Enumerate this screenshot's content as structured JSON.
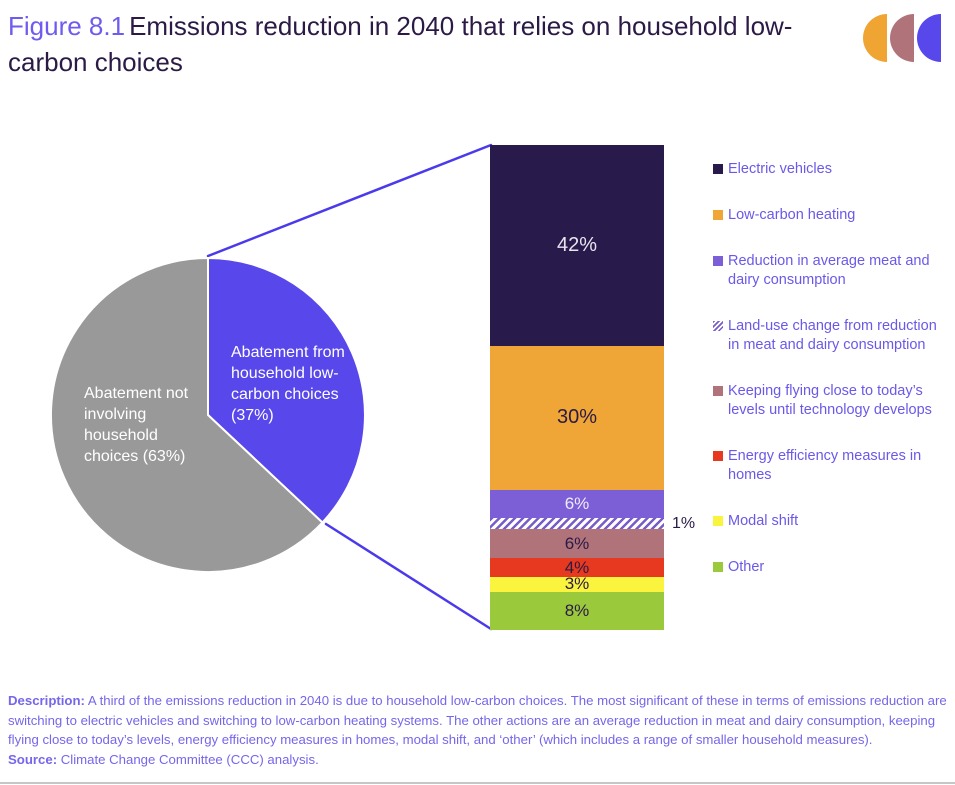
{
  "figure": {
    "label": "Figure 8.1",
    "title": "Emissions reduction in 2040 that relies on household low-carbon choices"
  },
  "logo": {
    "name": "CCC logo",
    "colors": [
      "#F0A432",
      "#B0737A",
      "#5847EB"
    ]
  },
  "chart_data": [
    {
      "type": "pie",
      "direction": "clockwise",
      "start_angle": "12 o'clock",
      "label_color": "#FFFFFF",
      "slices": [
        {
          "label": "Abatement from household low-carbon choices (37%)",
          "value": 37,
          "color": "#5847EB"
        },
        {
          "label": "Abatement not involving household choices (63%)",
          "value": 63,
          "color": "#9A999A"
        }
      ]
    },
    {
      "type": "stacked-bar",
      "unit": "%",
      "total": 100,
      "legend_position": "right",
      "series": [
        {
          "name": "Electric vehicles",
          "value": 42,
          "data_label": "42%",
          "color": "#281A4A",
          "label_color": "#E9E5F0"
        },
        {
          "name": "Low-carbon heating",
          "value": 30,
          "data_label": "30%",
          "color": "#F0A636",
          "label_color": "#2B1A46"
        },
        {
          "name": "Reduction in average meat and dairy consumption",
          "value": 6,
          "data_label": "6%",
          "color": "#7C5ED7",
          "label_color": "#EFEBF7"
        },
        {
          "name": "Land-use change from reduction in meat and dairy consumption",
          "value": 1,
          "data_label": "1%",
          "color": "hatched-white-purple",
          "hatch": true,
          "hatch_stripe_color": "#7A5CC8",
          "label_color": "#2B1A46",
          "label_outside": true
        },
        {
          "name": "Keeping flying close to today’s levels until technology develops",
          "value": 6,
          "data_label": "6%",
          "color": "#B0737A",
          "label_color": "#2B1A46"
        },
        {
          "name": "Energy efficiency measures in homes",
          "value": 4,
          "data_label": "4%",
          "color": "#E6391F",
          "label_color": "#2B1A46"
        },
        {
          "name": "Modal shift",
          "value": 3,
          "data_label": "3%",
          "color": "#FAF43F",
          "label_color": "#2B1A46"
        },
        {
          "name": "Other",
          "value": 8,
          "data_label": "8%",
          "color": "#9ACA3C",
          "label_color": "#2B1A46"
        }
      ]
    }
  ],
  "description": {
    "label": "Description:",
    "text": " A third of the emissions reduction in 2040 is due to household low-carbon choices. The most significant of these in terms of emissions reduction are switching to electric vehicles and switching to low-carbon heating systems. The other actions are an average reduction in meat and dairy consumption, keeping flying close to today’s levels, energy efficiency measures in homes, modal shift, and ‘other’ (which includes a range of smaller household measures)."
  },
  "source": {
    "label": "Source:",
    "text": " Climate Change Committee (CCC) analysis."
  }
}
